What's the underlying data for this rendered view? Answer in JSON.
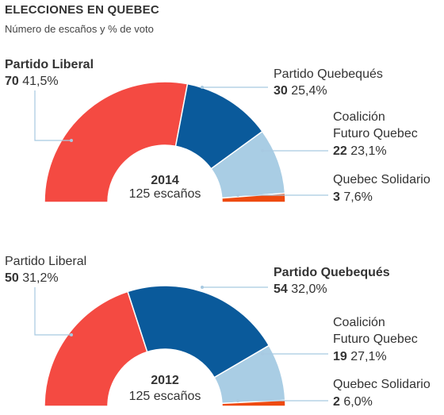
{
  "header": {
    "title": "ELECCIONES EN QUEBEC",
    "subtitle": "Número de escaños y % de voto"
  },
  "colors": {
    "liberal": "#f44a42",
    "quebequois": "#0a5a9b",
    "caq": "#a9cde4",
    "solidaire": "#ee4a10",
    "leader": "#a7c9e1"
  },
  "chart_data": [
    {
      "type": "pie",
      "variant": "half-donut",
      "center_title": "2014",
      "center_subtitle": "125 escaños",
      "total_seats": 125,
      "parties": [
        {
          "name": "Partido Liberal",
          "seats": 70,
          "vote": "41,5%",
          "seats_label": "70",
          "bold_name": true
        },
        {
          "name": "Partido Quebequés",
          "seats": 30,
          "vote": "25,4%",
          "seats_label": "30",
          "bold_name": false
        },
        {
          "name": "Coalición",
          "name2": "Futuro Quebec",
          "seats": 22,
          "vote": "23,1%",
          "seats_label": "22",
          "bold_name": false
        },
        {
          "name": "Quebec Solidario",
          "seats": 3,
          "vote": "7,6%",
          "seats_label": "3",
          "bold_name": false
        }
      ]
    },
    {
      "type": "pie",
      "variant": "half-donut",
      "center_title": "2012",
      "center_subtitle": "125 escaños",
      "total_seats": 125,
      "parties": [
        {
          "name": "Partido Liberal",
          "seats": 50,
          "vote": "31,2%",
          "seats_label": "50",
          "bold_name": false
        },
        {
          "name": "Partido Quebequés",
          "seats": 54,
          "vote": "32,0%",
          "seats_label": "54",
          "bold_name": true
        },
        {
          "name": "Coalición",
          "name2": "Futuro Quebec",
          "seats": 19,
          "vote": "27,1%",
          "seats_label": "19",
          "bold_name": false
        },
        {
          "name": "Quebec Solidario",
          "seats": 2,
          "vote": "6,0%",
          "seats_label": "2",
          "bold_name": false
        }
      ]
    }
  ]
}
